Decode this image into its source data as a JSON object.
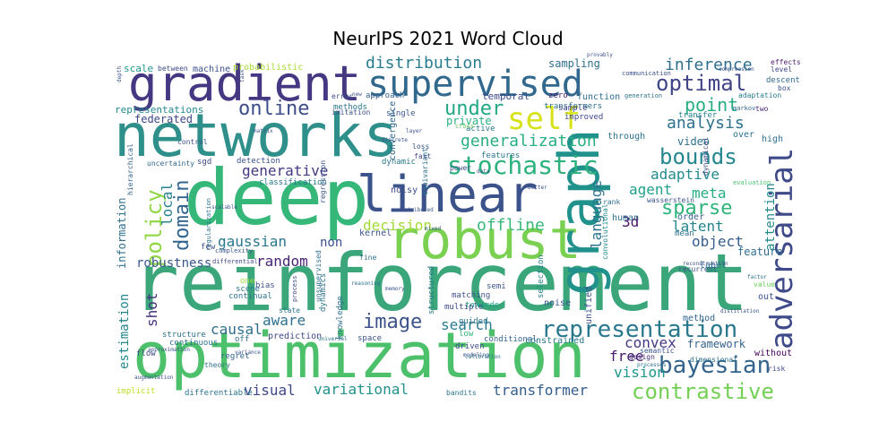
{
  "chart_data": {
    "type": "wordcloud",
    "title": "NeurIPS 2021 Word Cloud",
    "words": [
      {
        "text": "reinforcement",
        "color": "#3aa67a"
      },
      {
        "text": "optimization",
        "color": "#4cc06a"
      },
      {
        "text": "networks",
        "color": "#2f8f8a"
      },
      {
        "text": "deep",
        "color": "#35b779"
      },
      {
        "text": "robust",
        "color": "#7ad151"
      },
      {
        "text": "linear",
        "color": "#3b528b"
      },
      {
        "text": "gradient",
        "color": "#453781"
      },
      {
        "text": "graph",
        "color": "#21918c"
      },
      {
        "text": "supervised",
        "color": "#31688e"
      },
      {
        "text": "adversarial",
        "color": "#3e4a89"
      },
      {
        "text": "representation",
        "color": "#2a788e"
      },
      {
        "text": "stochastic",
        "color": "#2db27d"
      },
      {
        "text": "self",
        "color": "#d8e219"
      },
      {
        "text": "contrastive",
        "color": "#73d055"
      },
      {
        "text": "bayesian",
        "color": "#33638d"
      },
      {
        "text": "optimal",
        "color": "#414487"
      },
      {
        "text": "image",
        "color": "#3b528b"
      },
      {
        "text": "bounds",
        "color": "#24868e"
      },
      {
        "text": "sparse",
        "color": "#2fb47c"
      },
      {
        "text": "policy",
        "color": "#8fd744"
      },
      {
        "text": "domain",
        "color": "#32648e"
      },
      {
        "text": "distribution",
        "color": "#287c8e"
      },
      {
        "text": "online",
        "color": "#3d4d8a"
      },
      {
        "text": "under",
        "color": "#22a884"
      },
      {
        "text": "generalization",
        "color": "#29af7f"
      },
      {
        "text": "inference",
        "color": "#2e6f8e"
      },
      {
        "text": "point",
        "color": "#27ad81"
      },
      {
        "text": "analysis",
        "color": "#2c718e"
      },
      {
        "text": "adaptive",
        "color": "#238a8d"
      },
      {
        "text": "meta",
        "color": "#27ad81"
      },
      {
        "text": "agent",
        "color": "#1fa088"
      },
      {
        "text": "decision",
        "color": "#a2da37"
      },
      {
        "text": "offline",
        "color": "#37b878"
      },
      {
        "text": "language",
        "color": "#2c738e"
      },
      {
        "text": "latent",
        "color": "#25858e"
      },
      {
        "text": "object",
        "color": "#365c8d"
      },
      {
        "text": "random",
        "color": "#482475"
      },
      {
        "text": "gaussian",
        "color": "#2a768e"
      },
      {
        "text": "generative",
        "color": "#443a83"
      },
      {
        "text": "causal",
        "color": "#2e6e8e"
      },
      {
        "text": "aware",
        "color": "#2d718e"
      },
      {
        "text": "search",
        "color": "#297a8e"
      },
      {
        "text": "convex",
        "color": "#443983"
      },
      {
        "text": "free",
        "color": "#482071"
      },
      {
        "text": "vision",
        "color": "#1f968b"
      },
      {
        "text": "transformer",
        "color": "#355e8d"
      },
      {
        "text": "variational",
        "color": "#21918c"
      },
      {
        "text": "visual",
        "color": "#3f4889"
      },
      {
        "text": "framework",
        "color": "#33628d"
      },
      {
        "text": "estimation",
        "color": "#24878e"
      },
      {
        "text": "robustness",
        "color": "#39568c"
      },
      {
        "text": "federated",
        "color": "#3f4788"
      },
      {
        "text": "shot",
        "color": "#46307e"
      },
      {
        "text": "local",
        "color": "#26828e"
      },
      {
        "text": "information",
        "color": "#2d708e"
      },
      {
        "text": "non",
        "color": "#3b518b"
      },
      {
        "text": "3d",
        "color": "#471365"
      },
      {
        "text": "video",
        "color": "#2d708e"
      },
      {
        "text": "attention",
        "color": "#228b8d"
      },
      {
        "text": "sampling",
        "color": "#2e6f8e"
      },
      {
        "text": "private",
        "color": "#2ab07f"
      },
      {
        "text": "representations",
        "color": "#238a8d"
      },
      {
        "text": "scale",
        "color": "#1f9a8a"
      },
      {
        "text": "between",
        "color": "#3d4e8a"
      },
      {
        "text": "machine",
        "color": "#3b518b"
      },
      {
        "text": "probabilistic",
        "color": "#a8db34"
      },
      {
        "text": "temporal",
        "color": "#3e4989"
      },
      {
        "text": "function",
        "color": "#2e6e8e"
      },
      {
        "text": "communication",
        "color": "#3c4f8a"
      },
      {
        "text": "descent",
        "color": "#2f6b8e"
      },
      {
        "text": "adaptation",
        "color": "#287d8e"
      },
      {
        "text": "transfer",
        "color": "#26828e"
      },
      {
        "text": "effects",
        "color": "#481a6c"
      },
      {
        "text": "level",
        "color": "#3e4989"
      },
      {
        "text": "box",
        "color": "#3a538b"
      },
      {
        "text": "two",
        "color": "#482576"
      },
      {
        "text": "markov",
        "color": "#30698e"
      },
      {
        "text": "over",
        "color": "#2b748e"
      },
      {
        "text": "high",
        "color": "#2c728e"
      },
      {
        "text": "through",
        "color": "#2c718e"
      },
      {
        "text": "dynamical",
        "color": "#3e4a89"
      },
      {
        "text": "evaluation",
        "color": "#4ac16d"
      },
      {
        "text": "rank",
        "color": "#2c728e"
      },
      {
        "text": "wasserstein",
        "color": "#3b528b"
      },
      {
        "text": "human",
        "color": "#2d708e"
      },
      {
        "text": "order",
        "color": "#355e8d"
      },
      {
        "text": "mean",
        "color": "#2c728e"
      },
      {
        "text": "feature",
        "color": "#2e6f8e"
      },
      {
        "text": "label",
        "color": "#2e6f8e"
      },
      {
        "text": "recurrent",
        "color": "#3b518b"
      },
      {
        "text": "convolutional",
        "color": "#238a8d"
      },
      {
        "text": "unified",
        "color": "#3b528b"
      },
      {
        "text": "method",
        "color": "#31678e"
      },
      {
        "text": "semantic",
        "color": "#39568c"
      },
      {
        "text": "design",
        "color": "#472d7b"
      },
      {
        "text": "without",
        "color": "#440154"
      },
      {
        "text": "risk",
        "color": "#3f4788"
      },
      {
        "text": "dimensional",
        "color": "#2e6f8e"
      },
      {
        "text": "out",
        "color": "#3a538b"
      },
      {
        "text": "value",
        "color": "#6ccd5a"
      },
      {
        "text": "noise",
        "color": "#3b528b"
      },
      {
        "text": "constrained",
        "color": "#2a788e"
      },
      {
        "text": "conditional",
        "color": "#32648e"
      },
      {
        "text": "selection",
        "color": "#26828e"
      },
      {
        "text": "towards",
        "color": "#1fa287"
      },
      {
        "text": "matching",
        "color": "#3d4e8a"
      },
      {
        "text": "semi",
        "color": "#39568c"
      },
      {
        "text": "guided",
        "color": "#2c728e"
      },
      {
        "text": "multiple",
        "color": "#3e4a89"
      },
      {
        "text": "structured",
        "color": "#287c8e"
      },
      {
        "text": "driven",
        "color": "#3e4a89"
      },
      {
        "text": "low",
        "color": "#32b67a"
      },
      {
        "text": "kernel",
        "color": "#3a538b"
      },
      {
        "text": "noisy",
        "color": "#3e4a89"
      },
      {
        "text": "unsupervised",
        "color": "#2d708e"
      },
      {
        "text": "convergence",
        "color": "#30698e"
      },
      {
        "text": "regression",
        "color": "#3b528b"
      },
      {
        "text": "equivariant",
        "color": "#2c718e"
      },
      {
        "text": "dynamic",
        "color": "#2a778e"
      },
      {
        "text": "loss",
        "color": "#3a538b"
      },
      {
        "text": "fast",
        "color": "#3e4a89"
      },
      {
        "text": "power",
        "color": "#3d4d8a"
      },
      {
        "text": "features",
        "color": "#2a768e"
      },
      {
        "text": "active",
        "color": "#2a778e"
      },
      {
        "text": "transformers",
        "color": "#2d708e"
      },
      {
        "text": "improved",
        "color": "#3f4889"
      },
      {
        "text": "sample",
        "color": "#3e4989"
      },
      {
        "text": "zero",
        "color": "#482173"
      },
      {
        "text": "generation",
        "color": "#2d718e"
      },
      {
        "text": "single",
        "color": "#39568c"
      },
      {
        "text": "imitation",
        "color": "#3b528b"
      },
      {
        "text": "methods",
        "color": "#2c738e"
      },
      {
        "text": "approach",
        "color": "#33638d"
      },
      {
        "text": "error",
        "color": "#3b518b"
      },
      {
        "text": "control",
        "color": "#3b528b"
      },
      {
        "text": "hierarchical",
        "color": "#32648e"
      },
      {
        "text": "uncertainty",
        "color": "#31688e"
      },
      {
        "text": "sgd",
        "color": "#3e4a89"
      },
      {
        "text": "detection",
        "color": "#3a538b"
      },
      {
        "text": "classification",
        "color": "#2b748e"
      },
      {
        "text": "regularization",
        "color": "#2d708e"
      },
      {
        "text": "complexity",
        "color": "#39568c"
      },
      {
        "text": "differential",
        "color": "#3e4989"
      },
      {
        "text": "few",
        "color": "#3b528b"
      },
      {
        "text": "scene",
        "color": "#2a778e"
      },
      {
        "text": "bias",
        "color": "#3b518b"
      },
      {
        "text": "continual",
        "color": "#2d708e"
      },
      {
        "text": "state",
        "color": "#2a778e"
      },
      {
        "text": "one",
        "color": "#a0da39"
      },
      {
        "text": "dynamics",
        "color": "#2c718e"
      },
      {
        "text": "continuous",
        "color": "#2c728e"
      },
      {
        "text": "flow",
        "color": "#3e4a89"
      },
      {
        "text": "structure",
        "color": "#2d708e"
      },
      {
        "text": "prediction",
        "color": "#3e4989"
      },
      {
        "text": "off",
        "color": "#2d708e"
      },
      {
        "text": "space",
        "color": "#3a538b"
      },
      {
        "text": "theory",
        "color": "#2c728e"
      },
      {
        "text": "regret",
        "color": "#32648e"
      },
      {
        "text": "implicit",
        "color": "#bddf26"
      },
      {
        "text": "differentiable",
        "color": "#2c728e"
      },
      {
        "text": "bandits",
        "color": "#2a778e"
      },
      {
        "text": "fine",
        "color": "#2e6e8e"
      },
      {
        "text": "process",
        "color": "#3e4989"
      },
      {
        "text": "knowledge",
        "color": "#2c728e"
      },
      {
        "text": "cross",
        "color": "#6ccd5a"
      },
      {
        "text": "discrete",
        "color": "#3b528b"
      },
      {
        "text": "universal",
        "color": "#2c738e"
      },
      {
        "text": "approximation",
        "color": "#3b528b"
      },
      {
        "text": "variance",
        "color": "#3b528b"
      },
      {
        "text": "modeling",
        "color": "#3b528b"
      },
      {
        "text": "reasoning",
        "color": "#2d708e"
      },
      {
        "text": "augmentation",
        "color": "#3b528b"
      },
      {
        "text": "calibration",
        "color": "#2d708e"
      },
      {
        "text": "distillation",
        "color": "#3b528b"
      },
      {
        "text": "reconstruction",
        "color": "#3b528b"
      },
      {
        "text": "processes",
        "color": "#2c728e"
      },
      {
        "text": "compression",
        "color": "#3b528b"
      },
      {
        "text": "provably",
        "color": "#3b528b"
      },
      {
        "text": "depth",
        "color": "#3b528b"
      },
      {
        "text": "factor",
        "color": "#2c728e"
      },
      {
        "text": "matrix",
        "color": "#3b528b"
      },
      {
        "text": "better",
        "color": "#3b528b"
      },
      {
        "text": "memory",
        "color": "#3b528b"
      },
      {
        "text": "layer",
        "color": "#3b528b"
      },
      {
        "text": "task",
        "color": "#3b528b"
      },
      {
        "text": "distributed",
        "color": "#3b528b"
      },
      {
        "text": "scalable",
        "color": "#3b528b"
      },
      {
        "text": "data",
        "color": "#3b528b"
      },
      {
        "text": "new",
        "color": "#3b528b"
      },
      {
        "text": "mixed",
        "color": "#3b528b"
      }
    ]
  }
}
